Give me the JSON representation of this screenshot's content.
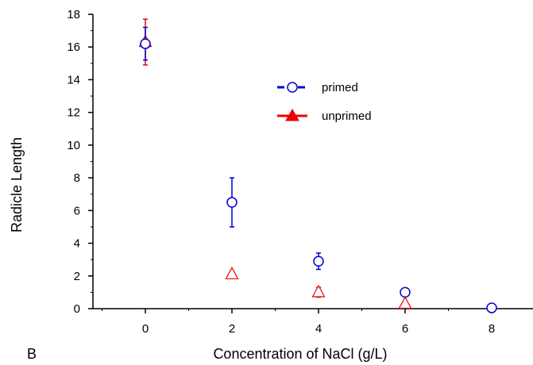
{
  "chart_data": {
    "type": "scatter",
    "xlabel": "Concentration of NaCl (g/L)",
    "ylabel": "Radicle Length",
    "panel_label": "B",
    "xlim": [
      -1.3,
      11
    ],
    "ylim": [
      0,
      18
    ],
    "x_ticks": [
      0,
      2,
      4,
      6,
      8
    ],
    "y_ticks": [
      0,
      2,
      4,
      6,
      8,
      10,
      12,
      14,
      16,
      18
    ],
    "legend_position": "upper-middle",
    "series": [
      {
        "name": "primed",
        "color": "#0000cc",
        "marker": "circle",
        "x": [
          0,
          2,
          4,
          6,
          8
        ],
        "y": [
          16.2,
          6.5,
          2.9,
          1.0,
          0.05
        ],
        "error": [
          1.0,
          1.5,
          0.5,
          0.1,
          0.05
        ]
      },
      {
        "name": "unprimed",
        "color": "#ee0000",
        "marker": "triangle",
        "x": [
          0,
          2,
          4,
          6
        ],
        "y": [
          16.3,
          2.1,
          1.0,
          0.3
        ],
        "error": [
          1.4,
          0.1,
          0.3,
          0.05
        ]
      }
    ]
  }
}
